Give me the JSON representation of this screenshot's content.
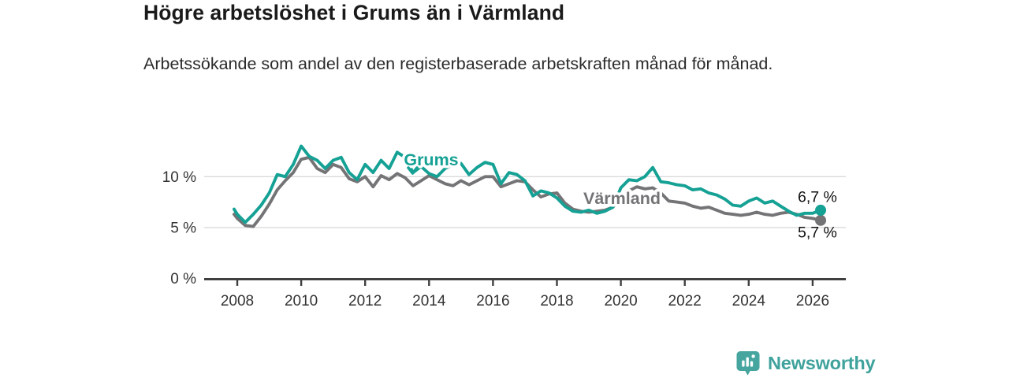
{
  "header": {
    "title": "Högre arbetslöshet i Grums än i Värmland",
    "subtitle": "Arbetssökande som andel av den registerbaserade arbetskraften månad för månad."
  },
  "branding": {
    "name": "Newsworthy",
    "icon": "bar-chart-speech-bubble",
    "color": "#3fa29c"
  },
  "chart_data": {
    "type": "line",
    "title": "Högre arbetslöshet i Grums än i Värmland",
    "ylabel": "",
    "xlabel": "",
    "grid": "horizontal",
    "legend_position": "inline-line-labels",
    "x_ticks": [
      2008,
      2010,
      2012,
      2014,
      2016,
      2018,
      2020,
      2022,
      2024,
      2026
    ],
    "y_ticks": {
      "values": [
        0,
        5,
        10
      ],
      "labels": [
        "0 %",
        "5 %",
        "10 %"
      ]
    },
    "xlim": [
      2007.85,
      2027.05
    ],
    "ylim": [
      0,
      13.8
    ],
    "x": [
      2007.9,
      2008,
      2008.25,
      2008.5,
      2008.75,
      2009,
      2009.25,
      2009.5,
      2009.75,
      2010,
      2010.25,
      2010.5,
      2010.75,
      2011,
      2011.25,
      2011.5,
      2011.75,
      2012,
      2012.25,
      2012.5,
      2012.75,
      2013,
      2013.25,
      2013.5,
      2013.75,
      2014,
      2014.25,
      2014.5,
      2014.75,
      2015,
      2015.25,
      2015.5,
      2015.75,
      2016,
      2016.25,
      2016.5,
      2016.75,
      2017,
      2017.25,
      2017.5,
      2017.75,
      2018,
      2018.25,
      2018.5,
      2018.75,
      2019,
      2019.25,
      2019.5,
      2019.75,
      2020,
      2020.25,
      2020.5,
      2020.75,
      2021,
      2021.25,
      2021.5,
      2021.75,
      2022,
      2022.25,
      2022.5,
      2022.75,
      2023,
      2023.25,
      2023.5,
      2023.75,
      2024,
      2024.25,
      2024.5,
      2024.75,
      2025,
      2025.25,
      2025.5,
      2025.75,
      2026,
      2026.25
    ],
    "series": [
      {
        "name": "Värmland",
        "color": "#747477",
        "end_value_label": "5,7 %",
        "values": [
          6.3,
          5.9,
          5.2,
          5.1,
          6.1,
          7.3,
          8.7,
          9.6,
          10.4,
          11.7,
          11.9,
          10.8,
          10.4,
          11.2,
          10.9,
          9.8,
          9.5,
          10.0,
          9.0,
          10.1,
          9.7,
          10.3,
          9.9,
          9.1,
          9.6,
          10.1,
          9.7,
          9.3,
          9.1,
          9.6,
          9.2,
          9.6,
          10.0,
          10.0,
          9.0,
          9.3,
          9.6,
          9.5,
          8.7,
          8.0,
          8.3,
          8.4,
          7.4,
          6.8,
          6.6,
          6.5,
          6.6,
          6.7,
          7.0,
          8.0,
          8.6,
          9.0,
          8.8,
          8.9,
          8.4,
          7.6,
          7.5,
          7.4,
          7.1,
          6.9,
          7.0,
          6.7,
          6.4,
          6.3,
          6.2,
          6.3,
          6.5,
          6.3,
          6.2,
          6.4,
          6.5,
          6.3,
          6.0,
          5.9,
          5.7
        ]
      },
      {
        "name": "Grums",
        "color": "#16a195",
        "end_value_label": "6,7 %",
        "values": [
          6.8,
          6.3,
          5.5,
          6.3,
          7.2,
          8.4,
          10.2,
          10.0,
          11.2,
          13.0,
          12.0,
          11.6,
          10.8,
          11.6,
          11.9,
          10.4,
          9.7,
          11.2,
          10.4,
          11.6,
          10.8,
          12.4,
          11.9,
          10.4,
          11.0,
          10.3,
          10.0,
          10.8,
          11.2,
          11.3,
          10.2,
          10.9,
          11.4,
          11.2,
          9.3,
          10.4,
          10.2,
          9.6,
          8.1,
          8.6,
          8.4,
          7.9,
          7.1,
          6.6,
          6.5,
          6.7,
          6.4,
          6.6,
          7.0,
          8.9,
          9.7,
          9.6,
          10.0,
          10.9,
          9.5,
          9.4,
          9.2,
          9.1,
          8.7,
          8.8,
          8.4,
          8.2,
          7.8,
          7.2,
          7.1,
          7.6,
          7.9,
          7.4,
          7.6,
          7.1,
          6.6,
          6.2,
          6.4,
          6.4,
          6.7
        ]
      }
    ]
  }
}
